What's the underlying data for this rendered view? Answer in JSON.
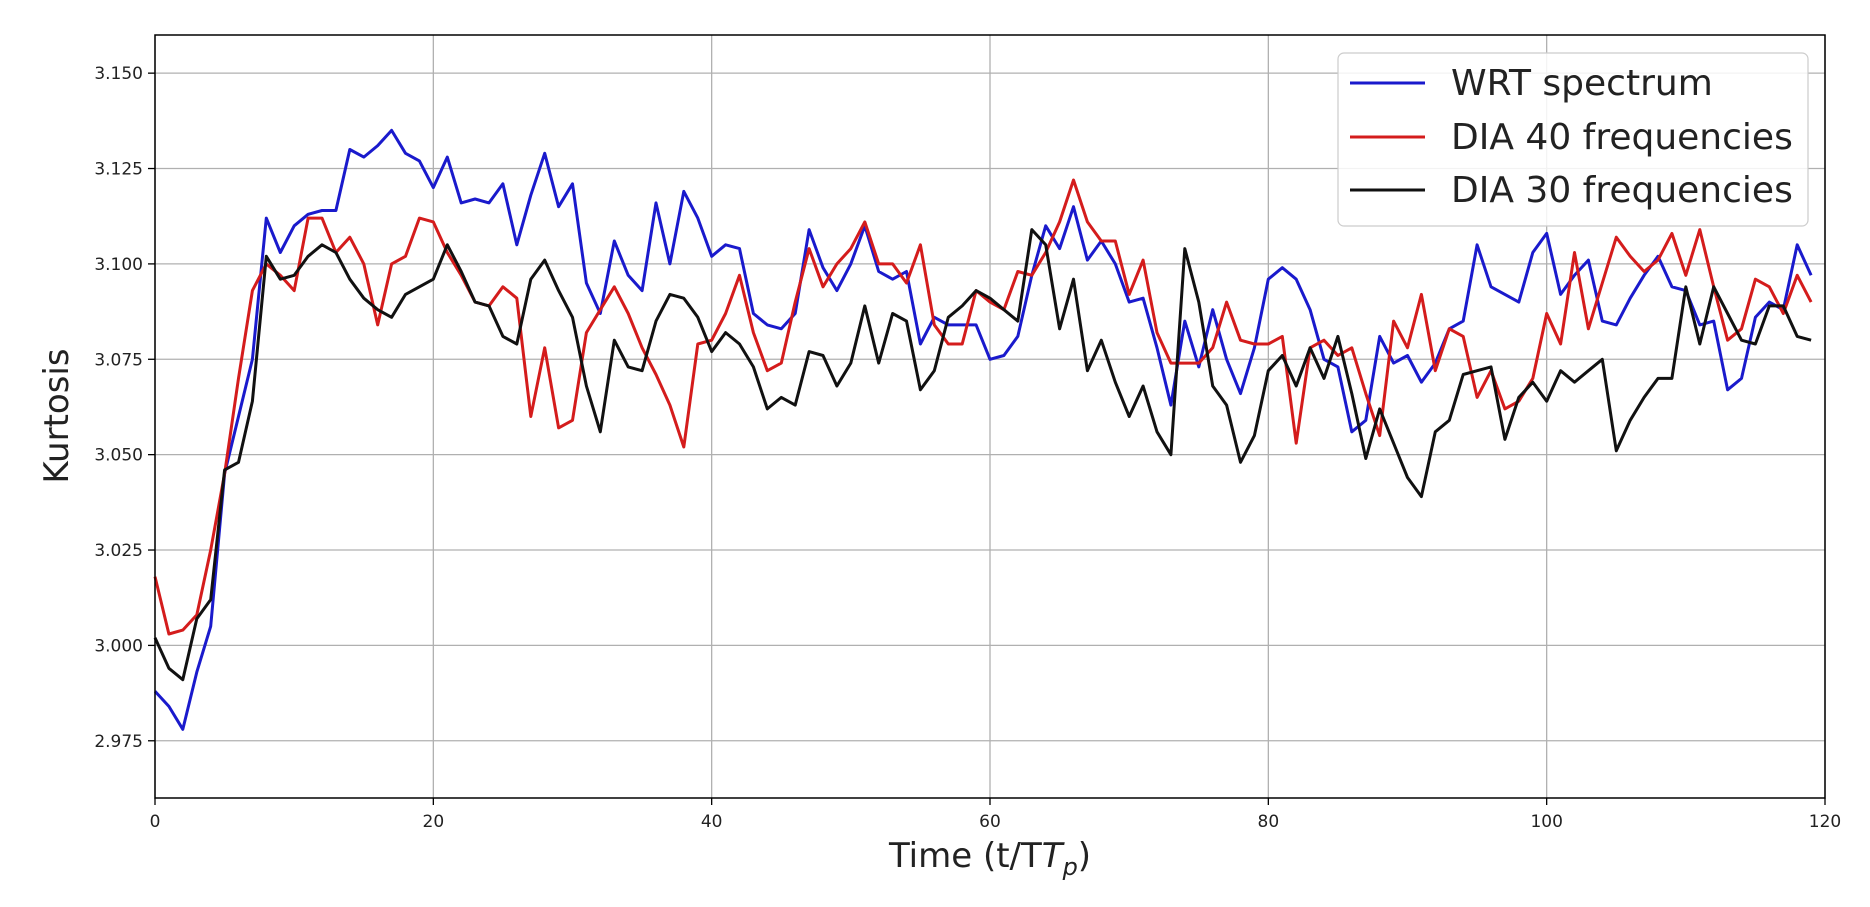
{
  "chart_data": {
    "type": "line",
    "title": "",
    "xlabel": "Time (t/T",
    "xlabel_sub": "p",
    "xlabel_close": ")",
    "ylabel": "Kurtosis",
    "xlim": [
      0,
      120
    ],
    "ylim": [
      2.96,
      3.16
    ],
    "xticks": [
      0,
      20,
      40,
      60,
      80,
      100,
      120
    ],
    "xtick_labels": [
      "0",
      "20",
      "40",
      "60",
      "80",
      "100",
      "120"
    ],
    "yticks": [
      2.975,
      3.0,
      3.025,
      3.05,
      3.075,
      3.1,
      3.125,
      3.15
    ],
    "ytick_labels": [
      "2.975",
      "3.000",
      "3.025",
      "3.050",
      "3.075",
      "3.100",
      "3.125",
      "3.150"
    ],
    "grid": true,
    "legend_position": "top-right",
    "x": [
      0,
      1,
      2,
      3,
      4,
      5,
      6,
      7,
      8,
      9,
      10,
      11,
      12,
      13,
      14,
      15,
      16,
      17,
      18,
      19,
      20,
      21,
      22,
      23,
      24,
      25,
      26,
      27,
      28,
      29,
      30,
      31,
      32,
      33,
      34,
      35,
      36,
      37,
      38,
      39,
      40,
      41,
      42,
      43,
      44,
      45,
      46,
      47,
      48,
      49,
      50,
      51,
      52,
      53,
      54,
      55,
      56,
      57,
      58,
      59,
      60,
      61,
      62,
      63,
      64,
      65,
      66,
      67,
      68,
      69,
      70,
      71,
      72,
      73,
      74,
      75,
      76,
      77,
      78,
      79,
      80,
      81,
      82,
      83,
      84,
      85,
      86,
      87,
      88,
      89,
      90,
      91,
      92,
      93,
      94,
      95,
      96,
      97,
      98,
      99,
      100,
      101,
      102,
      103,
      104,
      105,
      106,
      107,
      108,
      109,
      110,
      111,
      112,
      113,
      114,
      115,
      116,
      117,
      118,
      119
    ],
    "series": [
      {
        "name": "WRT spectrum",
        "color": "#1a1acc",
        "values": [
          2.988,
          2.984,
          2.978,
          2.993,
          3.005,
          3.045,
          3.06,
          3.075,
          3.112,
          3.103,
          3.11,
          3.113,
          3.114,
          3.114,
          3.13,
          3.128,
          3.131,
          3.135,
          3.129,
          3.127,
          3.12,
          3.128,
          3.116,
          3.117,
          3.116,
          3.121,
          3.105,
          3.118,
          3.129,
          3.115,
          3.121,
          3.095,
          3.087,
          3.106,
          3.097,
          3.093,
          3.116,
          3.1,
          3.119,
          3.112,
          3.102,
          3.105,
          3.104,
          3.087,
          3.084,
          3.083,
          3.087,
          3.109,
          3.099,
          3.093,
          3.1,
          3.11,
          3.098,
          3.096,
          3.098,
          3.079,
          3.086,
          3.084,
          3.084,
          3.084,
          3.075,
          3.076,
          3.081,
          3.097,
          3.11,
          3.104,
          3.115,
          3.101,
          3.106,
          3.1,
          3.09,
          3.091,
          3.078,
          3.063,
          3.085,
          3.073,
          3.088,
          3.075,
          3.066,
          3.078,
          3.096,
          3.099,
          3.096,
          3.088,
          3.075,
          3.073,
          3.056,
          3.059,
          3.081,
          3.074,
          3.076,
          3.069,
          3.074,
          3.083,
          3.085,
          3.105,
          3.094,
          3.092,
          3.09,
          3.103,
          3.108,
          3.092,
          3.097,
          3.101,
          3.085,
          3.084,
          3.091,
          3.097,
          3.102,
          3.094,
          3.093,
          3.084,
          3.085,
          3.067,
          3.07,
          3.086,
          3.09,
          3.088,
          3.105,
          3.097
        ]
      },
      {
        "name": "DIA 40 frequencies",
        "color": "#d41c1c",
        "values": [
          3.018,
          3.003,
          3.004,
          3.008,
          3.025,
          3.045,
          3.07,
          3.093,
          3.1,
          3.097,
          3.093,
          3.112,
          3.112,
          3.103,
          3.107,
          3.1,
          3.084,
          3.1,
          3.102,
          3.112,
          3.111,
          3.103,
          3.097,
          3.09,
          3.089,
          3.094,
          3.091,
          3.06,
          3.078,
          3.057,
          3.059,
          3.082,
          3.088,
          3.094,
          3.087,
          3.078,
          3.071,
          3.063,
          3.052,
          3.079,
          3.08,
          3.087,
          3.097,
          3.082,
          3.072,
          3.074,
          3.09,
          3.104,
          3.094,
          3.1,
          3.104,
          3.111,
          3.1,
          3.1,
          3.095,
          3.105,
          3.084,
          3.079,
          3.079,
          3.093,
          3.09,
          3.088,
          3.098,
          3.097,
          3.103,
          3.111,
          3.122,
          3.111,
          3.106,
          3.106,
          3.092,
          3.101,
          3.082,
          3.074,
          3.074,
          3.074,
          3.078,
          3.09,
          3.08,
          3.079,
          3.079,
          3.081,
          3.053,
          3.078,
          3.08,
          3.076,
          3.078,
          3.066,
          3.055,
          3.085,
          3.078,
          3.092,
          3.072,
          3.083,
          3.081,
          3.065,
          3.072,
          3.062,
          3.064,
          3.07,
          3.087,
          3.079,
          3.103,
          3.083,
          3.095,
          3.107,
          3.102,
          3.098,
          3.101,
          3.108,
          3.097,
          3.109,
          3.094,
          3.08,
          3.083,
          3.096,
          3.094,
          3.087,
          3.097,
          3.09
        ]
      },
      {
        "name": "DIA 30 frequencies",
        "color": "#111111",
        "values": [
          3.002,
          2.994,
          2.991,
          3.007,
          3.012,
          3.046,
          3.048,
          3.064,
          3.102,
          3.096,
          3.097,
          3.102,
          3.105,
          3.103,
          3.096,
          3.091,
          3.088,
          3.086,
          3.092,
          3.094,
          3.096,
          3.105,
          3.098,
          3.09,
          3.089,
          3.081,
          3.079,
          3.096,
          3.101,
          3.093,
          3.086,
          3.068,
          3.056,
          3.08,
          3.073,
          3.072,
          3.085,
          3.092,
          3.091,
          3.086,
          3.077,
          3.082,
          3.079,
          3.073,
          3.062,
          3.065,
          3.063,
          3.077,
          3.076,
          3.068,
          3.074,
          3.089,
          3.074,
          3.087,
          3.085,
          3.067,
          3.072,
          3.086,
          3.089,
          3.093,
          3.091,
          3.088,
          3.085,
          3.109,
          3.105,
          3.083,
          3.096,
          3.072,
          3.08,
          3.069,
          3.06,
          3.068,
          3.056,
          3.05,
          3.104,
          3.09,
          3.068,
          3.063,
          3.048,
          3.055,
          3.072,
          3.076,
          3.068,
          3.078,
          3.07,
          3.081,
          3.066,
          3.049,
          3.062,
          3.053,
          3.044,
          3.039,
          3.056,
          3.059,
          3.071,
          3.072,
          3.073,
          3.054,
          3.065,
          3.069,
          3.064,
          3.072,
          3.069,
          3.072,
          3.075,
          3.051,
          3.059,
          3.065,
          3.07,
          3.07,
          3.094,
          3.079,
          3.094,
          3.087,
          3.08,
          3.079,
          3.089,
          3.089,
          3.081,
          3.08
        ]
      }
    ]
  }
}
